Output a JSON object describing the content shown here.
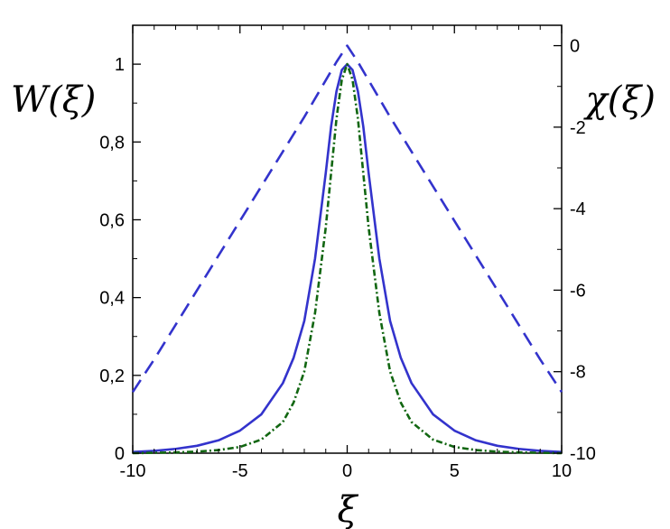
{
  "chart_data": {
    "type": "line",
    "title": "",
    "xlabel": "ξ",
    "ylabel_left": "W(ξ)",
    "ylabel_right": "χ(ξ)",
    "xlim": [
      -10,
      10
    ],
    "ylim_left": [
      0,
      1.1
    ],
    "ylim_right": [
      -10,
      0.5
    ],
    "x_ticks": [
      "-10",
      "-5",
      "0",
      "5",
      "10"
    ],
    "y_left_ticks": [
      "0",
      "0,2",
      "0,4",
      "0,6",
      "0,8",
      "1"
    ],
    "y_right_ticks": [
      "-10",
      "-8",
      "-6",
      "-4",
      "-2",
      "0"
    ],
    "grid": false,
    "series": [
      {
        "axis": "left",
        "color": "#3333cc",
        "style": "solid",
        "x": [
          -10,
          -9,
          -8,
          -7,
          -6,
          -5,
          -4,
          -3,
          -2.5,
          -2,
          -1.5,
          -1,
          -0.75,
          -0.5,
          -0.25,
          0,
          0.25,
          0.5,
          0.75,
          1,
          1.5,
          2,
          2.5,
          3,
          4,
          5,
          6,
          7,
          8,
          9,
          10
        ],
        "y": [
          0.003,
          0.006,
          0.011,
          0.019,
          0.033,
          0.058,
          0.1,
          0.18,
          0.245,
          0.34,
          0.5,
          0.72,
          0.84,
          0.93,
          0.985,
          1.0,
          0.985,
          0.93,
          0.84,
          0.72,
          0.5,
          0.34,
          0.245,
          0.18,
          0.1,
          0.058,
          0.033,
          0.019,
          0.011,
          0.006,
          0.003
        ]
      },
      {
        "axis": "left",
        "color": "#116611",
        "style": "dashdot",
        "x": [
          -10,
          -9,
          -8,
          -7,
          -6,
          -5,
          -4,
          -3,
          -2.5,
          -2,
          -1.5,
          -1,
          -0.75,
          -0.5,
          -0.25,
          0,
          0.25,
          0.5,
          0.75,
          1,
          1.5,
          2,
          2.5,
          3,
          4,
          5,
          6,
          7,
          8,
          9,
          10
        ],
        "y": [
          0.0,
          0.001,
          0.002,
          0.004,
          0.008,
          0.016,
          0.035,
          0.08,
          0.13,
          0.21,
          0.36,
          0.58,
          0.72,
          0.86,
          0.96,
          1.0,
          0.96,
          0.86,
          0.72,
          0.58,
          0.36,
          0.21,
          0.13,
          0.08,
          0.035,
          0.016,
          0.008,
          0.004,
          0.002,
          0.001,
          0.0
        ]
      },
      {
        "axis": "right",
        "color": "#3333cc",
        "style": "dashed",
        "x": [
          -10,
          -9,
          -8,
          -7,
          -6,
          -5,
          -4,
          -3,
          -2,
          -1,
          -0.5,
          0,
          0.5,
          1,
          2,
          3,
          4,
          5,
          6,
          7,
          8,
          9,
          10
        ],
        "y": [
          -8.5,
          -7.7,
          -6.85,
          -6.0,
          -5.15,
          -4.3,
          -3.45,
          -2.6,
          -1.75,
          -0.85,
          -0.4,
          0.0,
          -0.4,
          -0.85,
          -1.75,
          -2.6,
          -3.45,
          -4.3,
          -5.15,
          -6.0,
          -6.85,
          -7.7,
          -8.5
        ]
      }
    ]
  }
}
